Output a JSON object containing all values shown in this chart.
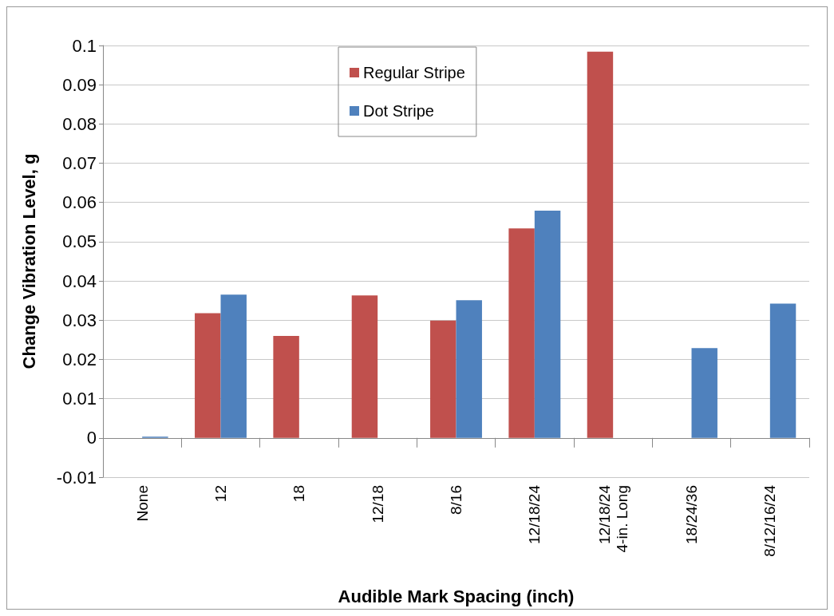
{
  "chart_data": {
    "type": "bar",
    "xlabel": "Audible Mark Spacing (inch)",
    "ylabel": "Change Vibration Level, g",
    "categories": [
      "None",
      "12",
      "18",
      "12/18",
      "8/16",
      "12/18/24",
      "12/18/24\n4-in. Long",
      "18/24/36",
      "8/12/16/24"
    ],
    "series": [
      {
        "name": "Regular Stripe",
        "color": "#c0504d",
        "values": [
          null,
          0.0318,
          0.026,
          0.0363,
          0.0299,
          0.0534,
          0.0984,
          null,
          null
        ]
      },
      {
        "name": "Dot Stripe",
        "color": "#4f81bd",
        "values": [
          0.0003,
          0.0365,
          null,
          null,
          0.0351,
          0.0579,
          null,
          0.0229,
          0.0342
        ]
      }
    ],
    "ylim": [
      -0.01,
      0.1
    ],
    "yticks": [
      -0.01,
      0,
      0.01,
      0.02,
      0.03,
      0.04,
      0.05,
      0.06,
      0.07,
      0.08,
      0.09,
      0.1
    ],
    "grid": "y",
    "legend": "top"
  }
}
